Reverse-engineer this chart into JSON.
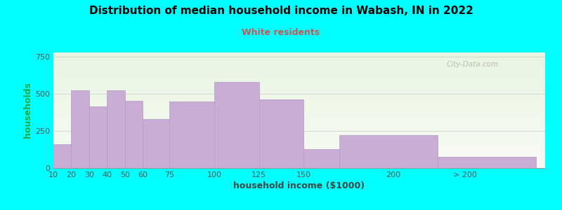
{
  "title": "Distribution of median household income in Wabash, IN in 2022",
  "subtitle": "White residents",
  "xlabel": "household income ($1000)",
  "ylabel": "households",
  "background_color": "#00FFFF",
  "bar_color": "#c8aed4",
  "bar_edge_color": "#b898c8",
  "title_color": "#000000",
  "subtitle_color": "#cc5555",
  "ylabel_color": "#22aa44",
  "xlabel_color": "#444444",
  "tick_labels": [
    "10",
    "20",
    "30",
    "40",
    "50",
    "60",
    "75",
    "100",
    "125",
    "150",
    "200",
    "> 200"
  ],
  "tick_positions": [
    10,
    20,
    30,
    40,
    50,
    60,
    75,
    100,
    125,
    150,
    200,
    240
  ],
  "bar_lefts": [
    10,
    20,
    30,
    40,
    50,
    60,
    75,
    100,
    125,
    150,
    170,
    225
  ],
  "bar_widths": [
    10,
    10,
    10,
    10,
    10,
    15,
    25,
    25,
    25,
    20,
    55,
    55
  ],
  "bar_heights": [
    160,
    525,
    415,
    525,
    455,
    330,
    450,
    580,
    465,
    130,
    220,
    75
  ],
  "ylim": [
    0,
    780
  ],
  "yticks": [
    0,
    250,
    500,
    750
  ],
  "watermark": "City-Data.com",
  "gradient_top": "#e8f5e0",
  "gradient_bottom": "#f8fbf5"
}
